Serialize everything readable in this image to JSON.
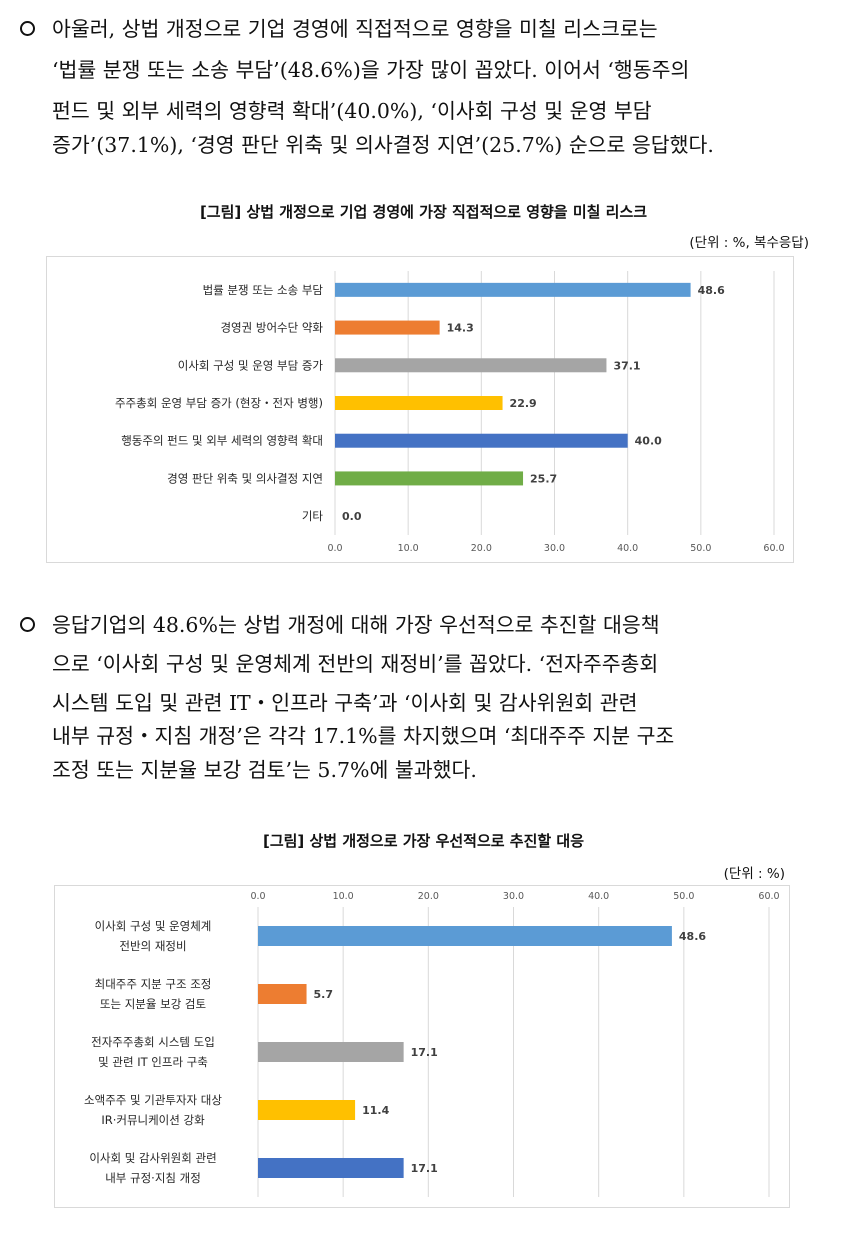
{
  "paragraph1": {
    "lines": [
      "아울러, 상법 개정으로 기업 경영에 직접적으로 영향을 미칠 리스크로는",
      "‘법률 분쟁 또는 소송 부담’(48.6%)을 가장 많이 꼽았다. 이어서 ‘행동주의",
      "펀드 및 외부 세력의 영향력 확대’(40.0%), ‘이사회 구성 및 운영 부담",
      "증가’(37.1%), ‘경영 판단 위축 및 의사결정 지연’(25.7%) 순으로 응답했다."
    ]
  },
  "figure1": {
    "title": "[그림] 상법 개정으로 기업 경영에 가장 직접적으로 영향을 미칠 리스크",
    "unit": "(단위 : %, 복수응답)"
  },
  "paragraph2": {
    "lines": [
      "응답기업의 48.6%는 상법 개정에 대해 가장 우선적으로 추진할 대응책",
      "으로 ‘이사회 구성 및 운영체계 전반의 재정비’를 꼽았다. ‘전자주주총회",
      "시스템 도입 및 관련 IT・인프라 구축’과 ‘이사회 및 감사위원회 관련",
      "내부 규정・지침 개정’은 각각 17.1%를 차지했으며 ‘최대주주 지분 구조",
      "조정 또는 지분율 보강 검토’는 5.7%에 불과했다."
    ]
  },
  "figure2": {
    "title": "[그림] 상법 개정으로 가장 우선적으로 추진할 대응",
    "unit": "(단위 : %)"
  },
  "chart_data": [
    {
      "type": "bar",
      "orientation": "horizontal",
      "categories": [
        "법률 분쟁 또는 소송 부담",
        "경영권 방어수단 약화",
        "이사회 구성 및 운영 부담 증가",
        "주주총회 운영 부담 증가 (현장・전자 병행)",
        "행동주의 펀드 및 외부 세력의 영향력 확대",
        "경영 판단 위축 및 의사결정 지연",
        "기타"
      ],
      "values": [
        48.6,
        14.3,
        37.1,
        22.9,
        40.0,
        25.7,
        0.0
      ],
      "value_labels": [
        "48.6",
        "14.3",
        "37.1",
        "22.9",
        "40.0",
        "25.7",
        "0.0"
      ],
      "colors": [
        "#5b9bd5",
        "#ed7d31",
        "#a5a5a5",
        "#ffc000",
        "#4472c4",
        "#70ad47",
        "#264478"
      ],
      "xlim": [
        0,
        60
      ],
      "x_ticks": [
        "0.0",
        "10.0",
        "20.0",
        "30.0",
        "40.0",
        "50.0",
        "60.0"
      ],
      "x_axis_position": "bottom",
      "grid": true
    },
    {
      "type": "bar",
      "orientation": "horizontal",
      "categories": [
        [
          "이사회 구성 및 운영체계",
          "전반의 재정비"
        ],
        [
          "최대주주 지분 구조 조정",
          "또는 지분율 보강 검토"
        ],
        [
          "전자주주총회 시스템 도입",
          "및 관련 IT 인프라 구축"
        ],
        [
          "소액주주 및 기관투자자 대상",
          "IR·커뮤니케이션 강화"
        ],
        [
          "이사회 및 감사위원회 관련",
          "내부 규정·지침 개정"
        ]
      ],
      "values": [
        48.6,
        5.7,
        17.1,
        11.4,
        17.1
      ],
      "value_labels": [
        "48.6",
        "5.7",
        "17.1",
        "11.4",
        "17.1"
      ],
      "colors": [
        "#5b9bd5",
        "#ed7d31",
        "#a5a5a5",
        "#ffc000",
        "#4472c4"
      ],
      "xlim": [
        0,
        60
      ],
      "x_ticks": [
        "0.0",
        "10.0",
        "20.0",
        "30.0",
        "40.0",
        "50.0",
        "60.0"
      ],
      "x_axis_position": "top",
      "grid": true
    }
  ]
}
